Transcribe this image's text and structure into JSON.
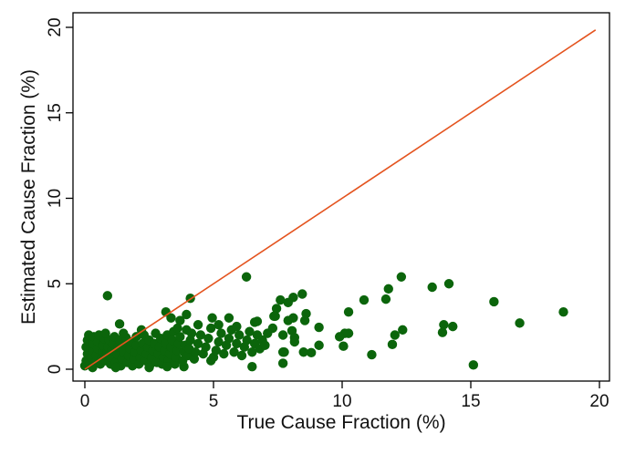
{
  "chart_data": {
    "type": "scatter",
    "title": "",
    "xlabel": "True Cause Fraction (%)",
    "ylabel": "Estimated Cause Fraction (%)",
    "xlim": [
      0,
      20
    ],
    "ylim": [
      0,
      20
    ],
    "xticks": [
      "0",
      "5",
      "10",
      "15",
      "20"
    ],
    "yticks": [
      "0",
      "5",
      "10",
      "15",
      "20"
    ],
    "grid": false,
    "point_color": "#0b650b",
    "reference_line": {
      "from": [
        0,
        0
      ],
      "to": [
        19.85,
        19.85
      ],
      "color": "#e4531e"
    },
    "points": [
      [
        12.3,
        5.4
      ],
      [
        14.15,
        5.0
      ],
      [
        13.5,
        4.8
      ],
      [
        11.8,
        4.7
      ],
      [
        11.7,
        4.1
      ],
      [
        10.85,
        4.05
      ],
      [
        15.9,
        3.95
      ],
      [
        18.6,
        3.35
      ],
      [
        16.9,
        2.7
      ],
      [
        10.25,
        3.35
      ],
      [
        14.3,
        2.5
      ],
      [
        13.95,
        2.6
      ],
      [
        13.9,
        2.15
      ],
      [
        12.35,
        2.3
      ],
      [
        12.05,
        2.0
      ],
      [
        11.95,
        1.45
      ],
      [
        11.15,
        0.85
      ],
      [
        15.1,
        0.25
      ],
      [
        10.25,
        2.1
      ],
      [
        10.1,
        2.1
      ],
      [
        9.9,
        1.9
      ],
      [
        10.05,
        1.35
      ],
      [
        9.1,
        2.45
      ],
      [
        9.1,
        1.4
      ],
      [
        8.8,
        0.97
      ],
      [
        8.5,
        1.0
      ],
      [
        8.45,
        4.4
      ],
      [
        8.1,
        4.2
      ],
      [
        7.9,
        3.9
      ],
      [
        7.6,
        4.05
      ],
      [
        7.45,
        3.55
      ],
      [
        7.4,
        3.1
      ],
      [
        8.6,
        3.25
      ],
      [
        8.55,
        2.85
      ],
      [
        8.1,
        3.0
      ],
      [
        7.9,
        2.85
      ],
      [
        8.05,
        2.25
      ],
      [
        7.7,
        2.0
      ],
      [
        8.15,
        1.85
      ],
      [
        8.15,
        1.6
      ],
      [
        7.75,
        1.0
      ],
      [
        7.7,
        0.35
      ],
      [
        6.28,
        5.4
      ],
      [
        0.88,
        4.3
      ],
      [
        4.1,
        4.15
      ],
      [
        1.35,
        2.65
      ],
      [
        3.15,
        3.35
      ],
      [
        3.35,
        3.0
      ],
      [
        3.95,
        3.2
      ],
      [
        3.7,
        2.85
      ],
      [
        4.95,
        3.0
      ],
      [
        5.6,
        3.0
      ],
      [
        6.6,
        2.75
      ],
      [
        7.35,
        3.1
      ],
      [
        6.5,
        0.15
      ],
      [
        7.7,
        1.0
      ],
      [
        3.85,
        0.15
      ],
      [
        4.9,
        0.5
      ],
      [
        0.0,
        0.2
      ],
      [
        0.05,
        0.5
      ],
      [
        0.1,
        0.9
      ],
      [
        0.05,
        1.3
      ],
      [
        0.1,
        1.7
      ],
      [
        0.15,
        2.0
      ],
      [
        0.2,
        0.3
      ],
      [
        0.25,
        0.7
      ],
      [
        0.3,
        1.1
      ],
      [
        0.3,
        1.5
      ],
      [
        0.35,
        1.9
      ],
      [
        0.4,
        0.4
      ],
      [
        0.45,
        0.8
      ],
      [
        0.5,
        1.2
      ],
      [
        0.5,
        1.6
      ],
      [
        0.55,
        2.0
      ],
      [
        0.6,
        0.3
      ],
      [
        0.65,
        0.6
      ],
      [
        0.7,
        1.0
      ],
      [
        0.7,
        1.4
      ],
      [
        0.75,
        1.8
      ],
      [
        0.8,
        0.5
      ],
      [
        0.85,
        0.9
      ],
      [
        0.9,
        1.3
      ],
      [
        0.95,
        1.7
      ],
      [
        1.0,
        0.3
      ],
      [
        1.0,
        0.7
      ],
      [
        1.05,
        1.1
      ],
      [
        1.1,
        1.5
      ],
      [
        1.15,
        1.9
      ],
      [
        1.2,
        0.4
      ],
      [
        1.25,
        0.9
      ],
      [
        1.3,
        1.3
      ],
      [
        1.35,
        1.7
      ],
      [
        1.4,
        0.2
      ],
      [
        1.45,
        0.6
      ],
      [
        1.5,
        1.0
      ],
      [
        1.55,
        1.4
      ],
      [
        1.6,
        1.85
      ],
      [
        1.65,
        0.4
      ],
      [
        1.7,
        0.8
      ],
      [
        1.75,
        1.2
      ],
      [
        1.8,
        1.6
      ],
      [
        1.85,
        0.2
      ],
      [
        1.9,
        0.6
      ],
      [
        1.95,
        1.0
      ],
      [
        2.0,
        1.4
      ],
      [
        2.0,
        1.9
      ],
      [
        2.1,
        0.3
      ],
      [
        2.15,
        0.7
      ],
      [
        2.2,
        1.1
      ],
      [
        2.25,
        1.5
      ],
      [
        2.3,
        2.0
      ],
      [
        2.35,
        0.5
      ],
      [
        2.4,
        0.9
      ],
      [
        2.45,
        1.3
      ],
      [
        2.5,
        1.7
      ],
      [
        2.55,
        0.3
      ],
      [
        2.6,
        0.7
      ],
      [
        2.65,
        1.1
      ],
      [
        2.7,
        1.5
      ],
      [
        2.75,
        2.1
      ],
      [
        2.8,
        0.4
      ],
      [
        2.85,
        0.9
      ],
      [
        2.9,
        1.3
      ],
      [
        2.95,
        1.8
      ],
      [
        3.0,
        0.3
      ],
      [
        3.05,
        0.7
      ],
      [
        3.1,
        1.1
      ],
      [
        3.15,
        1.5
      ],
      [
        3.2,
        2.0
      ],
      [
        3.25,
        0.5
      ],
      [
        3.3,
        0.9
      ],
      [
        3.35,
        1.3
      ],
      [
        3.4,
        1.7
      ],
      [
        3.45,
        2.2
      ],
      [
        3.5,
        0.3
      ],
      [
        3.55,
        0.7
      ],
      [
        3.6,
        1.1
      ],
      [
        3.65,
        1.5
      ],
      [
        3.7,
        1.9
      ],
      [
        3.8,
        0.5
      ],
      [
        3.85,
        1.0
      ],
      [
        3.9,
        1.4
      ],
      [
        3.95,
        2.3
      ],
      [
        4.0,
        0.8
      ],
      [
        4.05,
        1.2
      ],
      [
        4.1,
        1.7
      ],
      [
        4.15,
        2.1
      ],
      [
        4.25,
        0.6
      ],
      [
        4.3,
        1.0
      ],
      [
        4.4,
        1.5
      ],
      [
        4.5,
        2.0
      ],
      [
        4.6,
        0.9
      ],
      [
        4.7,
        1.3
      ],
      [
        4.8,
        1.8
      ],
      [
        4.9,
        2.4
      ],
      [
        5.0,
        0.7
      ],
      [
        5.1,
        1.1
      ],
      [
        5.2,
        1.6
      ],
      [
        5.3,
        2.1
      ],
      [
        5.4,
        0.9
      ],
      [
        5.5,
        1.4
      ],
      [
        5.6,
        1.8
      ],
      [
        5.7,
        2.3
      ],
      [
        5.8,
        1.0
      ],
      [
        5.9,
        1.5
      ],
      [
        6.0,
        2.0
      ],
      [
        6.1,
        0.8
      ],
      [
        6.2,
        1.3
      ],
      [
        6.3,
        1.7
      ],
      [
        6.4,
        2.2
      ],
      [
        6.5,
        1.0
      ],
      [
        6.6,
        1.5
      ],
      [
        6.7,
        2.0
      ],
      [
        6.8,
        1.2
      ],
      [
        6.9,
        1.7
      ],
      [
        7.0,
        1.4
      ],
      [
        7.1,
        2.1
      ],
      [
        0.3,
        0.1
      ],
      [
        1.2,
        0.1
      ],
      [
        2.5,
        0.1
      ],
      [
        3.2,
        0.15
      ],
      [
        2.2,
        2.3
      ],
      [
        1.5,
        2.1
      ],
      [
        0.8,
        2.1
      ],
      [
        4.4,
        2.6
      ],
      [
        3.6,
        2.4
      ],
      [
        5.2,
        2.6
      ],
      [
        5.9,
        2.5
      ],
      [
        6.7,
        2.8
      ],
      [
        7.3,
        2.4
      ]
    ]
  }
}
